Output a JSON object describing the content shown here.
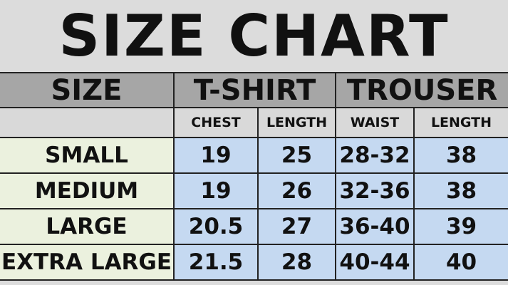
{
  "title": "SIZE CHART",
  "header": {
    "size": "SIZE",
    "tshirt": "T-SHIRT",
    "trouser": "TROUSER"
  },
  "subheader": [
    "CHEST",
    "LENGTH",
    "WAIST",
    "LENGTH"
  ],
  "rows": [
    {
      "size": "SMALL",
      "chest": "19",
      "tlength": "25",
      "waist": "28-32",
      "plength": "38"
    },
    {
      "size": "MEDIUM",
      "chest": "19",
      "tlength": "26",
      "waist": "32-36",
      "plength": "38"
    },
    {
      "size": "LARGE",
      "chest": "20.5",
      "tlength": "27",
      "waist": "36-40",
      "plength": "39"
    },
    {
      "size": "EXTRA LARGE",
      "chest": "21.5",
      "tlength": "28",
      "waist": "40-44",
      "plength": "40"
    }
  ],
  "colors": {
    "header": "#a6a6a6",
    "subheader": "#d9d9d9",
    "size_column": "#ebf1de",
    "data_cells": "#c5d9f1"
  }
}
